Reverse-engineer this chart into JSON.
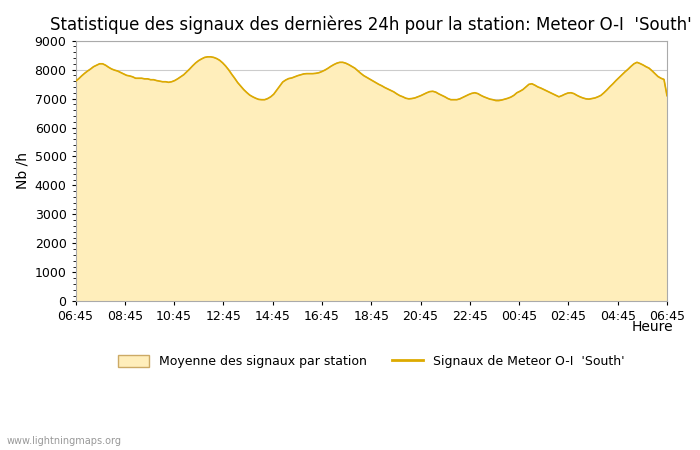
{
  "title": "Statistique des signaux des dernières 24h pour la station: Meteor O-I  'South'",
  "xlabel": "Heure",
  "ylabel": "Nb /h",
  "ylim": [
    0,
    9000
  ],
  "yticks": [
    0,
    1000,
    2000,
    3000,
    4000,
    5000,
    6000,
    7000,
    8000,
    9000
  ],
  "xtick_labels": [
    "06:45",
    "08:45",
    "10:45",
    "12:45",
    "14:45",
    "16:45",
    "18:45",
    "20:45",
    "22:45",
    "00:45",
    "02:45",
    "04:45",
    "06:45"
  ],
  "fill_color": "#FFEEBB",
  "fill_edge_color": "#CCAA66",
  "line_color": "#DDAA00",
  "bg_color": "#FFFFFF",
  "plot_bg_color": "#FFFFFF",
  "grid_color": "#CCCCCC",
  "title_fontsize": 12,
  "axis_fontsize": 10,
  "tick_fontsize": 9,
  "watermark": "www.lightningmaps.org",
  "legend_label_fill": "Moyenne des signaux par station",
  "legend_label_line": "Signaux de Meteor O-I  'South'",
  "y_fill": [
    7600,
    7680,
    7780,
    7870,
    7950,
    8020,
    8100,
    8150,
    8200,
    8200,
    8150,
    8080,
    8020,
    7980,
    7950,
    7900,
    7850,
    7800,
    7780,
    7750,
    7700,
    7700,
    7700,
    7680,
    7680,
    7650,
    7650,
    7620,
    7600,
    7580,
    7580,
    7560,
    7580,
    7620,
    7680,
    7750,
    7820,
    7920,
    8020,
    8130,
    8230,
    8310,
    8370,
    8420,
    8440,
    8440,
    8420,
    8380,
    8320,
    8230,
    8120,
    7990,
    7840,
    7700,
    7550,
    7430,
    7310,
    7210,
    7120,
    7060,
    7010,
    6970,
    6960,
    6960,
    7000,
    7060,
    7150,
    7290,
    7430,
    7570,
    7640,
    7690,
    7710,
    7750,
    7790,
    7820,
    7850,
    7860,
    7860,
    7860,
    7870,
    7890,
    7930,
    7980,
    8040,
    8110,
    8170,
    8220,
    8250,
    8250,
    8220,
    8170,
    8110,
    8050,
    7960,
    7870,
    7790,
    7730,
    7670,
    7610,
    7550,
    7490,
    7440,
    7380,
    7330,
    7280,
    7230,
    7160,
    7100,
    7060,
    7010,
    6990,
    7000,
    7020,
    7060,
    7100,
    7150,
    7200,
    7240,
    7250,
    7220,
    7160,
    7110,
    7060,
    7000,
    6960,
    6960,
    6960,
    6990,
    7040,
    7090,
    7140,
    7180,
    7200,
    7170,
    7110,
    7060,
    7020,
    6980,
    6960,
    6930,
    6930,
    6950,
    6980,
    7010,
    7050,
    7110,
    7200,
    7250,
    7310,
    7400,
    7490,
    7510,
    7460,
    7400,
    7360,
    7310,
    7260,
    7210,
    7160,
    7110,
    7060,
    7100,
    7150,
    7190,
    7200,
    7170,
    7110,
    7060,
    7020,
    6990,
    6980,
    7000,
    7020,
    7060,
    7110,
    7200,
    7300,
    7410,
    7510,
    7620,
    7720,
    7820,
    7920,
    8010,
    8110,
    8200,
    8250,
    8210,
    8160,
    8100,
    8050,
    7960,
    7860,
    7760,
    7700,
    7660,
    7100
  ]
}
